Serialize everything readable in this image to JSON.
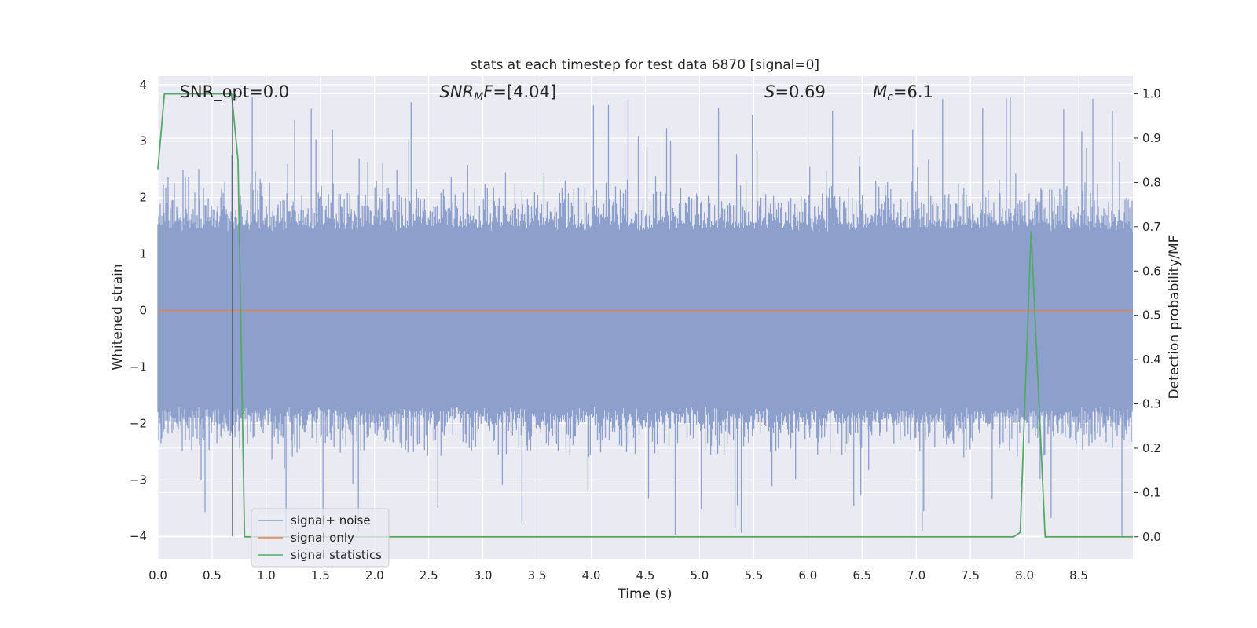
{
  "chart_data": {
    "type": "line",
    "title": "stats at each timestep for test data 6870 [signal=0]",
    "xlabel": "Time (s)",
    "ylabel": "Whitened strain",
    "y2label": "Detection probability/MF",
    "xlim": [
      0,
      9.0
    ],
    "ylim": [
      -4.4,
      4.15
    ],
    "y2lim": [
      -0.05,
      1.04
    ],
    "x_ticks": [
      0.0,
      0.5,
      1.0,
      1.5,
      2.0,
      2.5,
      3.0,
      3.5,
      4.0,
      4.5,
      5.0,
      5.5,
      6.0,
      6.5,
      7.0,
      7.5,
      8.0,
      8.5
    ],
    "x_tick_labels": [
      "0.0",
      "0.5",
      "1.0",
      "1.5",
      "2.0",
      "2.5",
      "3.0",
      "3.5",
      "4.0",
      "4.5",
      "5.0",
      "5.5",
      "6.0",
      "6.5",
      "7.0",
      "7.5",
      "8.0",
      "8.5"
    ],
    "y_ticks": [
      4,
      3,
      2,
      1,
      0,
      -1,
      -2,
      -3,
      -4
    ],
    "y_tick_labels": [
      "4",
      "3",
      "2",
      "1",
      "0",
      "−1",
      "−2",
      "−3",
      "−4"
    ],
    "y2_ticks": [
      1.0,
      0.9,
      0.8,
      0.7,
      0.6,
      0.5,
      0.4,
      0.3,
      0.2,
      0.1,
      0.0
    ],
    "y2_tick_labels": [
      "1.0",
      "0.9",
      "0.8",
      "0.7",
      "0.6",
      "0.5",
      "0.4",
      "0.3",
      "0.2",
      "0.1",
      "0.0"
    ],
    "grid": true,
    "legend_position": "lower-left",
    "series": [
      {
        "name": "signal+ noise",
        "axis": "left",
        "color": "#8da0cb",
        "style": "dense noise band",
        "x_range": [
          0,
          9.0
        ],
        "typical_range": [
          -1.7,
          1.4
        ],
        "extremes_range": [
          -4.0,
          3.8
        ]
      },
      {
        "name": "signal only",
        "axis": "left",
        "color": "#dd8452",
        "x": [
          0,
          9.0
        ],
        "y": [
          0,
          0
        ]
      },
      {
        "name": "signal statistics",
        "axis": "right",
        "color": "#55a868",
        "x": [
          0.0,
          0.06,
          0.1,
          0.65,
          0.68,
          0.74,
          0.8,
          7.9,
          7.96,
          8.06,
          8.19,
          9.0
        ],
        "y": [
          0.83,
          1.0,
          1.0,
          1.0,
          1.0,
          0.85,
          0.0,
          0.0,
          0.01,
          0.69,
          0.0,
          0.0
        ]
      }
    ],
    "vertical_marker_x": 0.69,
    "marker_color": "#444444",
    "annotations": [
      {
        "text": "SNR_opt=0.0",
        "x": 0.2
      },
      {
        "text": "SNR_MF=[4.04]",
        "x": 2.6,
        "html_base": "SNR",
        "html_sub": "M",
        "html_tail": "F=[4.04]"
      },
      {
        "text": "S=0.69",
        "x": 5.6
      },
      {
        "text": "M_c=6.1",
        "x": 6.6
      }
    ],
    "colors": {
      "plot_bg": "#eaeaf2",
      "grid": "#ffffff"
    }
  }
}
